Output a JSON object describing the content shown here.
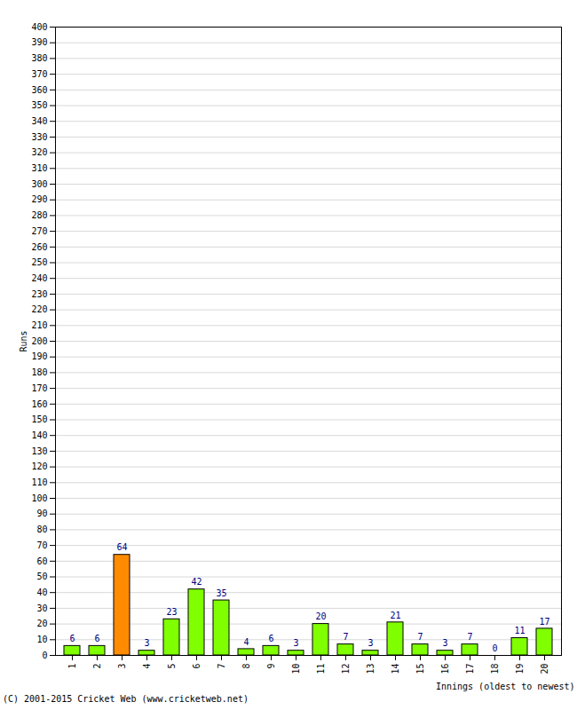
{
  "chart_data": {
    "type": "bar",
    "categories": [
      "1",
      "2",
      "3",
      "4",
      "5",
      "6",
      "7",
      "8",
      "9",
      "10",
      "11",
      "12",
      "13",
      "14",
      "15",
      "16",
      "17",
      "18",
      "19",
      "20"
    ],
    "values": [
      6,
      6,
      64,
      3,
      23,
      42,
      35,
      4,
      6,
      3,
      20,
      7,
      3,
      21,
      7,
      3,
      7,
      0,
      11,
      17
    ],
    "colors": [
      "#80ff00",
      "#80ff00",
      "#ff8c00",
      "#80ff00",
      "#80ff00",
      "#80ff00",
      "#80ff00",
      "#80ff00",
      "#80ff00",
      "#80ff00",
      "#80ff00",
      "#80ff00",
      "#80ff00",
      "#80ff00",
      "#80ff00",
      "#80ff00",
      "#80ff00",
      "#80ff00",
      "#80ff00",
      "#80ff00"
    ],
    "x_label": "Innings (oldest to newest)",
    "y_label": "Runs",
    "ylim": [
      0,
      400
    ],
    "yticks": [
      0,
      10,
      20,
      30,
      40,
      50,
      60,
      70,
      80,
      90,
      100,
      110,
      120,
      130,
      140,
      150,
      160,
      170,
      180,
      190,
      200,
      210,
      220,
      230,
      240,
      250,
      260,
      270,
      280,
      290,
      300,
      310,
      320,
      330,
      340,
      350,
      360,
      370,
      380,
      390,
      400
    ],
    "grid": true,
    "data_labels": true,
    "annotations": [
      "(C) 2001-2015 Cricket Web (www.cricketweb.net)"
    ]
  }
}
